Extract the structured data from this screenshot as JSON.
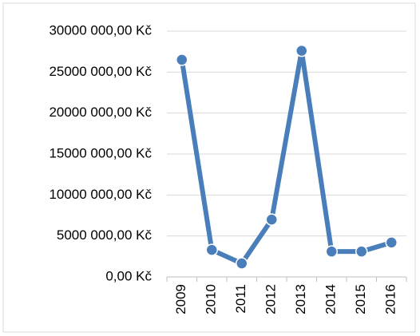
{
  "chart_data": {
    "type": "line",
    "categories": [
      "2009",
      "2010",
      "2011",
      "2012",
      "2013",
      "2014",
      "2015",
      "2016"
    ],
    "series": [
      {
        "color": "#4a7ebb",
        "values": [
          26500000,
          3300000,
          1650000,
          7000000,
          27600000,
          3100000,
          3100000,
          4200000
        ]
      }
    ],
    "ylim": [
      0,
      30000000
    ],
    "yticks": [
      {
        "value": 0,
        "label": "0,00 Kč"
      },
      {
        "value": 5000000,
        "label": "5000 000,00 Kč"
      },
      {
        "value": 10000000,
        "label": "10000 000,00 Kč"
      },
      {
        "value": 15000000,
        "label": "15000 000,00 Kč"
      },
      {
        "value": 20000000,
        "label": "20000 000,00 Kč"
      },
      {
        "value": 25000000,
        "label": "25000 000,00 Kč"
      },
      {
        "value": 30000000,
        "label": "30000 000,00 Kč"
      }
    ],
    "grid": true
  }
}
